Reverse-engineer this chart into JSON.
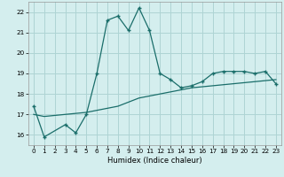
{
  "xlabel": "Humidex (Indice chaleur)",
  "background_color": "#d4eeee",
  "grid_color": "#aed4d4",
  "line_color": "#1a6e6a",
  "xlim": [
    -0.5,
    23.5
  ],
  "ylim": [
    15.5,
    22.5
  ],
  "xticks": [
    0,
    1,
    2,
    3,
    4,
    5,
    6,
    7,
    8,
    9,
    10,
    11,
    12,
    13,
    14,
    15,
    16,
    17,
    18,
    19,
    20,
    21,
    22,
    23
  ],
  "yticks": [
    16,
    17,
    18,
    19,
    20,
    21,
    22
  ],
  "series1_x": [
    0,
    1,
    3,
    4,
    5,
    6,
    7,
    8,
    9,
    10,
    11,
    12,
    13,
    14,
    15,
    16,
    17,
    18,
    19,
    20,
    21,
    22,
    23
  ],
  "series1_y": [
    17.4,
    15.9,
    16.5,
    16.1,
    17.0,
    19.0,
    21.6,
    21.8,
    21.1,
    22.2,
    21.1,
    19.0,
    18.7,
    18.3,
    18.4,
    18.6,
    19.0,
    19.1,
    19.1,
    19.1,
    19.0,
    19.1,
    18.5
  ],
  "series2_x": [
    0,
    1,
    3,
    4,
    5,
    6,
    7,
    8,
    9,
    10,
    11,
    12,
    13,
    14,
    15,
    16,
    17,
    18,
    19,
    20,
    21,
    22,
    23
  ],
  "series2_y": [
    17.0,
    16.9,
    17.0,
    17.05,
    17.1,
    17.2,
    17.3,
    17.4,
    17.6,
    17.8,
    17.9,
    18.0,
    18.1,
    18.2,
    18.3,
    18.35,
    18.4,
    18.45,
    18.5,
    18.55,
    18.6,
    18.65,
    18.7
  ]
}
